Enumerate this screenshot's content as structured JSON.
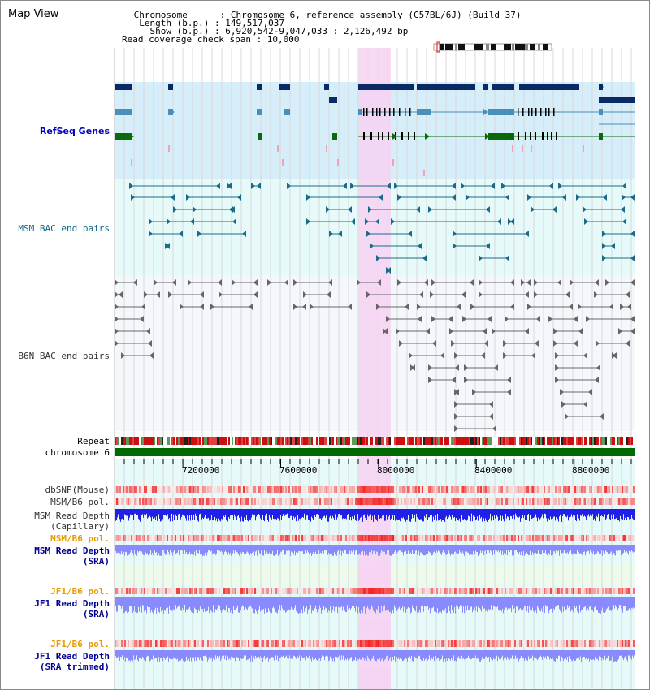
{
  "header": {
    "title": "Map View",
    "info_lines": [
      " Chromosome      : Chromosome 6, reference assembly (C57BL/6J) (Build 37)",
      "  Length (b.p.) : 149,517,037",
      "    Show (b.p.) : 6,920,542-9,047,033 : 2,126,492 bp",
      "Read coverage check span : 10,000"
    ]
  },
  "tracks": {
    "refseq": "RefSeq Genes",
    "msm_bac": "MSM BAC end pairs",
    "b6n_bac": "B6N BAC end pairs",
    "repeat": "Repeat",
    "chromosome": "chromosome 6",
    "dbsnp": "dbSNP(Mouse)",
    "msm_pol": "MSM/B6 pol.",
    "msm_depth_cap_1": "MSM Read Depth",
    "msm_depth_cap_2": "(Capillary)",
    "msm_pol_sra": "MSM/B6 pol.",
    "msm_depth_sra_1": "MSM Read Depth",
    "msm_depth_sra_2": "(SRA)",
    "jf1_pol": "JF1/B6 pol.",
    "jf1_depth_1": "JF1 Read Depth",
    "jf1_depth_2": "(SRA)",
    "jf1_pol_trim": "JF1/B6 pol.",
    "jf1_depth_trim_1": "JF1 Read Depth",
    "jf1_depth_trim_2": "(SRA trimmed)"
  },
  "axis": {
    "view_start": 6920542,
    "view_end": 9047033,
    "ticks": [
      {
        "value": 7200000,
        "label": "7200000"
      },
      {
        "value": 7600000,
        "label": "7600000"
      },
      {
        "value": 8000000,
        "label": "8000000"
      },
      {
        "value": 8400000,
        "label": "8400000"
      },
      {
        "value": 8800000,
        "label": "8800000"
      }
    ]
  },
  "highlight": {
    "start": 7920000,
    "end": 8050000
  },
  "colors": {
    "refseq_bg": "#d6eefa",
    "bac_bg": "#e6fafa",
    "b6n_bg": "#f4f8fc",
    "highlight": "#f7d2f2",
    "gene_navy": "#0a2a66",
    "gene_steel": "#4a8fb8",
    "gene_green": "#0a6a0a",
    "msm_bac": "#1a6a8a",
    "b6n_bac": "#666666",
    "depth_blue": "#2020e8",
    "depth_light": "#8a8aff"
  }
}
